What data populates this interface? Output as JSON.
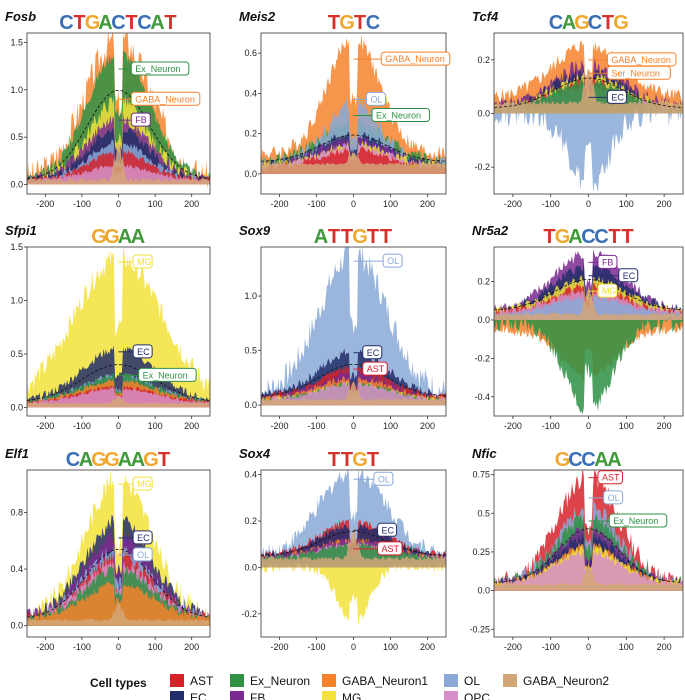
{
  "legend": {
    "title": "Cell types",
    "items": [
      {
        "name": "AST",
        "color": "#d7222a"
      },
      {
        "name": "Ex_Neuron",
        "color": "#2e9144"
      },
      {
        "name": "GABA_Neuron1",
        "color": "#f5822b"
      },
      {
        "name": "OL",
        "color": "#8aa9d6"
      },
      {
        "name": "GABA_Neuron2",
        "color": "#d3a678"
      },
      {
        "name": "EC",
        "color": "#222e6b"
      },
      {
        "name": "FB",
        "color": "#7a2a90"
      },
      {
        "name": "MG",
        "color": "#f2e23a"
      },
      {
        "name": "OPC",
        "color": "#d68fc8"
      }
    ]
  },
  "chart_data": [
    {
      "type": "area",
      "gene": "Fosb",
      "motif": "CTGACTCAT",
      "xlim": [
        -250,
        250
      ],
      "xticks": [
        -200,
        -100,
        0,
        100,
        200
      ],
      "ylim": [
        -0.1,
        1.6
      ],
      "yticks": [
        0.0,
        0.5,
        1.0,
        1.5
      ],
      "series": [
        {
          "name": "GABA_Neuron1",
          "peak": 1.55,
          "base": 0.05,
          "width": 90,
          "spread": 0.35
        },
        {
          "name": "Ex_Neuron",
          "peak": 1.4,
          "base": 0.05,
          "width": 85,
          "spread": 0.15
        },
        {
          "name": "MG",
          "peak": 0.9,
          "base": 0.05,
          "width": 80,
          "spread": 0.3
        },
        {
          "name": "FB",
          "peak": 0.7,
          "base": 0.05,
          "width": 85,
          "spread": 0.3
        },
        {
          "name": "EC",
          "peak": 0.6,
          "base": 0.05,
          "width": 80,
          "spread": 0.25
        },
        {
          "name": "OL",
          "peak": 0.45,
          "base": 0.05,
          "width": 80,
          "spread": 0.3
        },
        {
          "name": "AST",
          "peak": 0.35,
          "base": 0.05,
          "width": 80,
          "spread": 0.3
        },
        {
          "name": "OPC",
          "peak": 0.2,
          "base": 0.04,
          "width": 90,
          "spread": 0.4
        },
        {
          "name": "GABA_Neuron2",
          "peak": 0.8,
          "base": 0.05,
          "width": 8,
          "spread": 0.1
        }
      ],
      "labels": [
        {
          "text": "Ex_Neuron",
          "series": "Ex_Neuron",
          "x": 35,
          "y": 1.22
        },
        {
          "text": "GABA_Neuron",
          "series": "GABA_Neuron1",
          "x": 35,
          "y": 0.9
        },
        {
          "text": "FB",
          "series": "FB",
          "x": 35,
          "y": 0.68
        }
      ]
    },
    {
      "type": "area",
      "gene": "Meis2",
      "motif": "TGTC",
      "xlim": [
        -250,
        250
      ],
      "xticks": [
        -200,
        -100,
        0,
        100,
        200
      ],
      "ylim": [
        -0.1,
        0.7
      ],
      "yticks": [
        0.0,
        0.2,
        0.4,
        0.6
      ],
      "series": [
        {
          "name": "GABA_Neuron1",
          "peak": 0.68,
          "base": 0.1,
          "width": 70,
          "spread": 0.2
        },
        {
          "name": "Ex_Neuron",
          "peak": 0.25,
          "base": 0.06,
          "width": 90,
          "spread": 0.4
        },
        {
          "name": "OL",
          "peak": 0.35,
          "base": 0.05,
          "width": 70,
          "spread": 0.4
        },
        {
          "name": "EC",
          "peak": 0.2,
          "base": 0.04,
          "width": 90,
          "spread": 0.4
        },
        {
          "name": "FB",
          "peak": 0.18,
          "base": 0.04,
          "width": 90,
          "spread": 0.5
        },
        {
          "name": "MG",
          "peak": 0.15,
          "base": 0.04,
          "width": 90,
          "spread": 0.5
        },
        {
          "name": "OPC",
          "peak": 0.14,
          "base": 0.03,
          "width": 90,
          "spread": 0.5
        },
        {
          "name": "AST",
          "peak": 0.12,
          "base": 0.03,
          "width": 90,
          "spread": 0.5
        },
        {
          "name": "GABA_Neuron2",
          "peak": 0.2,
          "base": 0.05,
          "width": 8,
          "spread": 0.1
        }
      ],
      "labels": [
        {
          "text": "GABA_Neuron",
          "series": "GABA_Neuron1",
          "x": 75,
          "y": 0.57
        },
        {
          "text": "OL",
          "series": "OL",
          "x": 35,
          "y": 0.37
        },
        {
          "text": "Ex_Neuron",
          "series": "Ex_Neuron",
          "x": 50,
          "y": 0.29
        }
      ]
    },
    {
      "type": "area",
      "gene": "Tcf4",
      "motif": "CAGCTG",
      "xlim": [
        -250,
        250
      ],
      "xticks": [
        -200,
        -100,
        0,
        100,
        200
      ],
      "ylim": [
        -0.3,
        0.3
      ],
      "yticks": [
        -0.2,
        0.0,
        0.2
      ],
      "series": [
        {
          "name": "GABA_Neuron1",
          "peak": 0.26,
          "base": 0.06,
          "width": 90,
          "spread": 0.35
        },
        {
          "name": "FB",
          "peak": 0.18,
          "base": 0.02,
          "width": 90,
          "spread": 0.6
        },
        {
          "name": "EC",
          "peak": 0.16,
          "base": 0.02,
          "width": 90,
          "spread": 0.5
        },
        {
          "name": "MG",
          "peak": 0.14,
          "base": 0.02,
          "width": 90,
          "spread": 0.5
        },
        {
          "name": "AST",
          "peak": 0.12,
          "base": 0.02,
          "width": 90,
          "spread": 0.5
        },
        {
          "name": "OPC",
          "peak": 0.1,
          "base": 0.02,
          "width": 90,
          "spread": 0.5
        },
        {
          "name": "Ex_Neuron",
          "peak": 0.12,
          "base": 0.02,
          "width": 90,
          "spread": 0.4
        },
        {
          "name": "OL",
          "peak": -0.28,
          "base": 0.0,
          "width": 50,
          "spread": 0.6
        },
        {
          "name": "GABA_Neuron2",
          "peak": 0.3,
          "base": 0.04,
          "width": 8,
          "spread": 0.1
        }
      ],
      "labels": [
        {
          "text": "GABA_Neuron",
          "series": "GABA_Neuron1",
          "x": 50,
          "y": 0.2
        },
        {
          "text": "Ser_Neuron",
          "series": "GABA_Neuron1",
          "x": 50,
          "y": 0.15
        },
        {
          "text": "EC",
          "series": "EC",
          "x": 50,
          "y": 0.06
        }
      ]
    },
    {
      "type": "area",
      "gene": "Sfpi1",
      "motif": "GGAA",
      "xlim": [
        -250,
        250
      ],
      "xticks": [
        -200,
        -100,
        0,
        100,
        200
      ],
      "ylim": [
        -0.08,
        1.5
      ],
      "yticks": [
        0.0,
        0.5,
        1.0,
        1.5
      ],
      "series": [
        {
          "name": "MG",
          "peak": 1.4,
          "base": 0.05,
          "width": 120,
          "spread": 0.25
        },
        {
          "name": "EC",
          "peak": 0.55,
          "base": 0.05,
          "width": 100,
          "spread": 0.25
        },
        {
          "name": "OL",
          "peak": 0.3,
          "base": 0.05,
          "width": 100,
          "spread": 0.3
        },
        {
          "name": "FB",
          "peak": 0.25,
          "base": 0.05,
          "width": 100,
          "spread": 0.3
        },
        {
          "name": "Ex_Neuron",
          "peak": 0.3,
          "base": 0.05,
          "width": 100,
          "spread": 0.3
        },
        {
          "name": "GABA_Neuron1",
          "peak": 0.25,
          "base": 0.05,
          "width": 100,
          "spread": 0.3
        },
        {
          "name": "AST",
          "peak": 0.2,
          "base": 0.04,
          "width": 100,
          "spread": 0.3
        },
        {
          "name": "OPC",
          "peak": 0.18,
          "base": 0.04,
          "width": 100,
          "spread": 0.3
        },
        {
          "name": "GABA_Neuron2",
          "peak": 0.2,
          "base": 0.04,
          "width": 8,
          "spread": 0.1
        }
      ],
      "labels": [
        {
          "text": "MG",
          "series": "MG",
          "x": 40,
          "y": 1.36
        },
        {
          "text": "EC",
          "series": "EC",
          "x": 40,
          "y": 0.52
        },
        {
          "text": "Ex_Neuron",
          "series": "Ex_Neuron",
          "x": 55,
          "y": 0.3
        }
      ]
    },
    {
      "type": "area",
      "gene": "Sox9",
      "motif": "ATTGTT",
      "xlim": [
        -250,
        250
      ],
      "xticks": [
        -200,
        -100,
        0,
        100,
        200
      ],
      "ylim": [
        -0.1,
        1.45
      ],
      "yticks": [
        0.0,
        0.5,
        1.0
      ],
      "series": [
        {
          "name": "OL",
          "peak": 1.4,
          "base": 0.1,
          "width": 90,
          "spread": 0.3
        },
        {
          "name": "EC",
          "peak": 0.5,
          "base": 0.08,
          "width": 90,
          "spread": 0.3
        },
        {
          "name": "AST",
          "peak": 0.35,
          "base": 0.08,
          "width": 90,
          "spread": 0.3
        },
        {
          "name": "FB",
          "peak": 0.3,
          "base": 0.06,
          "width": 90,
          "spread": 0.4
        },
        {
          "name": "GABA_Neuron1",
          "peak": 0.25,
          "base": 0.06,
          "width": 90,
          "spread": 0.4
        },
        {
          "name": "MG",
          "peak": 0.2,
          "base": 0.05,
          "width": 90,
          "spread": 0.4
        },
        {
          "name": "Ex_Neuron",
          "peak": 0.2,
          "base": 0.05,
          "width": 90,
          "spread": 0.4
        },
        {
          "name": "OPC",
          "peak": 0.2,
          "base": 0.05,
          "width": 90,
          "spread": 0.4
        },
        {
          "name": "GABA_Neuron2",
          "peak": 0.4,
          "base": 0.05,
          "width": 8,
          "spread": 0.1
        }
      ],
      "labels": [
        {
          "text": "OL",
          "series": "OL",
          "x": 80,
          "y": 1.32
        },
        {
          "text": "EC",
          "series": "EC",
          "x": 25,
          "y": 0.48
        },
        {
          "text": "AST",
          "series": "AST",
          "x": 25,
          "y": 0.33
        }
      ]
    },
    {
      "type": "area",
      "gene": "Nr5a2",
      "motif": "TGACCTT",
      "xlim": [
        -250,
        250
      ],
      "xticks": [
        -200,
        -100,
        0,
        100,
        200
      ],
      "ylim": [
        -0.5,
        0.38
      ],
      "yticks": [
        -0.4,
        -0.2,
        0.0,
        0.2
      ],
      "series": [
        {
          "name": "FB",
          "peak": 0.35,
          "base": 0.05,
          "width": 90,
          "spread": 0.3
        },
        {
          "name": "EC",
          "peak": 0.28,
          "base": 0.05,
          "width": 90,
          "spread": 0.3
        },
        {
          "name": "MG",
          "peak": 0.22,
          "base": 0.05,
          "width": 90,
          "spread": 0.3
        },
        {
          "name": "AST",
          "peak": 0.18,
          "base": 0.04,
          "width": 90,
          "spread": 0.4
        },
        {
          "name": "OPC",
          "peak": 0.15,
          "base": 0.04,
          "width": 90,
          "spread": 0.4
        },
        {
          "name": "OL",
          "peak": 0.12,
          "base": 0.03,
          "width": 90,
          "spread": 0.4
        },
        {
          "name": "GABA_Neuron1",
          "peak": -0.3,
          "base": -0.05,
          "width": 70,
          "spread": 0.3
        },
        {
          "name": "Ex_Neuron",
          "peak": -0.48,
          "base": -0.02,
          "width": 60,
          "spread": 0.3
        },
        {
          "name": "GABA_Neuron2",
          "peak": 0.3,
          "base": 0.03,
          "width": 8,
          "spread": 0.1
        }
      ],
      "labels": [
        {
          "text": "FB",
          "series": "FB",
          "x": 25,
          "y": 0.3
        },
        {
          "text": "EC",
          "series": "EC",
          "x": 80,
          "y": 0.23
        },
        {
          "text": "MG",
          "series": "MG",
          "x": 25,
          "y": 0.15
        }
      ]
    },
    {
      "type": "area",
      "gene": "Elf1",
      "motif": "CAGGAAGT",
      "xlim": [
        -250,
        250
      ],
      "xticks": [
        -200,
        -100,
        0,
        100,
        200
      ],
      "ylim": [
        -0.08,
        1.1
      ],
      "yticks": [
        0.0,
        0.4,
        0.8
      ],
      "series": [
        {
          "name": "MG",
          "peak": 1.05,
          "base": 0.05,
          "width": 90,
          "spread": 0.25
        },
        {
          "name": "EC",
          "peak": 0.75,
          "base": 0.05,
          "width": 90,
          "spread": 0.25
        },
        {
          "name": "FB",
          "peak": 0.65,
          "base": 0.05,
          "width": 90,
          "spread": 0.3
        },
        {
          "name": "OL",
          "peak": 0.55,
          "base": 0.05,
          "width": 90,
          "spread": 0.3
        },
        {
          "name": "AST",
          "peak": 0.5,
          "base": 0.05,
          "width": 90,
          "spread": 0.3
        },
        {
          "name": "OPC",
          "peak": 0.45,
          "base": 0.05,
          "width": 90,
          "spread": 0.3
        },
        {
          "name": "Ex_Neuron",
          "peak": 0.4,
          "base": 0.05,
          "width": 90,
          "spread": 0.3
        },
        {
          "name": "GABA_Neuron1",
          "peak": 0.3,
          "base": 0.05,
          "width": 90,
          "spread": 0.3
        },
        {
          "name": "GABA_Neuron2",
          "peak": 0.3,
          "base": 0.04,
          "width": 8,
          "spread": 0.1
        }
      ],
      "labels": [
        {
          "text": "MG",
          "series": "MG",
          "x": 40,
          "y": 1.0
        },
        {
          "text": "EC",
          "series": "EC",
          "x": 40,
          "y": 0.62
        },
        {
          "text": "OL",
          "series": "OL",
          "x": 40,
          "y": 0.5
        }
      ]
    },
    {
      "type": "area",
      "gene": "Sox4",
      "motif": "TTGT",
      "xlim": [
        -250,
        250
      ],
      "xticks": [
        -200,
        -100,
        0,
        100,
        200
      ],
      "ylim": [
        -0.3,
        0.42
      ],
      "yticks": [
        -0.2,
        0.0,
        0.2,
        0.4
      ],
      "series": [
        {
          "name": "OL",
          "peak": 0.42,
          "base": 0.05,
          "width": 90,
          "spread": 0.3
        },
        {
          "name": "AST",
          "peak": 0.2,
          "base": 0.05,
          "width": 90,
          "spread": 0.3
        },
        {
          "name": "EC",
          "peak": 0.18,
          "base": 0.05,
          "width": 90,
          "spread": 0.3
        },
        {
          "name": "GABA_Neuron1",
          "peak": 0.12,
          "base": 0.04,
          "width": 90,
          "spread": 0.4
        },
        {
          "name": "FB",
          "peak": 0.12,
          "base": 0.04,
          "width": 90,
          "spread": 0.4
        },
        {
          "name": "OPC",
          "peak": 0.1,
          "base": 0.04,
          "width": 90,
          "spread": 0.4
        },
        {
          "name": "Ex_Neuron",
          "peak": 0.1,
          "base": 0.04,
          "width": 90,
          "spread": 0.4
        },
        {
          "name": "MG",
          "peak": -0.25,
          "base": 0.0,
          "width": 40,
          "spread": 0.3
        },
        {
          "name": "GABA_Neuron2",
          "peak": 0.3,
          "base": 0.04,
          "width": 8,
          "spread": 0.1
        }
      ],
      "labels": [
        {
          "text": "OL",
          "series": "OL",
          "x": 55,
          "y": 0.38
        },
        {
          "text": "EC",
          "series": "EC",
          "x": 65,
          "y": 0.16
        },
        {
          "text": "AST",
          "series": "AST",
          "x": 65,
          "y": 0.08
        }
      ]
    },
    {
      "type": "area",
      "gene": "Nfic",
      "motif": "GCCAA",
      "xlim": [
        -250,
        250
      ],
      "xticks": [
        -200,
        -100,
        0,
        100,
        200
      ],
      "ylim": [
        -0.3,
        0.78
      ],
      "yticks": [
        -0.25,
        0.0,
        0.25,
        0.5,
        0.75
      ],
      "series": [
        {
          "name": "AST",
          "peak": 0.75,
          "base": 0.05,
          "width": 80,
          "spread": 0.3
        },
        {
          "name": "OL",
          "peak": 0.55,
          "base": 0.05,
          "width": 80,
          "spread": 0.3
        },
        {
          "name": "Ex_Neuron",
          "peak": 0.48,
          "base": 0.05,
          "width": 80,
          "spread": 0.3
        },
        {
          "name": "FB",
          "peak": 0.4,
          "base": 0.05,
          "width": 80,
          "spread": 0.3
        },
        {
          "name": "EC",
          "peak": 0.35,
          "base": 0.05,
          "width": 80,
          "spread": 0.3
        },
        {
          "name": "GABA_Neuron1",
          "peak": 0.3,
          "base": 0.05,
          "width": 80,
          "spread": 0.3
        },
        {
          "name": "MG",
          "peak": 0.28,
          "base": 0.05,
          "width": 80,
          "spread": 0.3
        },
        {
          "name": "OPC",
          "peak": 0.25,
          "base": 0.05,
          "width": 80,
          "spread": 0.3
        },
        {
          "name": "GABA_Neuron2",
          "peak": 0.3,
          "base": 0.04,
          "width": 8,
          "spread": 0.1
        }
      ],
      "labels": [
        {
          "text": "AST",
          "series": "AST",
          "x": 25,
          "y": 0.73
        },
        {
          "text": "OL",
          "series": "OL",
          "x": 40,
          "y": 0.6
        },
        {
          "text": "Ex_Neuron",
          "series": "Ex_Neuron",
          "x": 55,
          "y": 0.45
        }
      ]
    }
  ]
}
